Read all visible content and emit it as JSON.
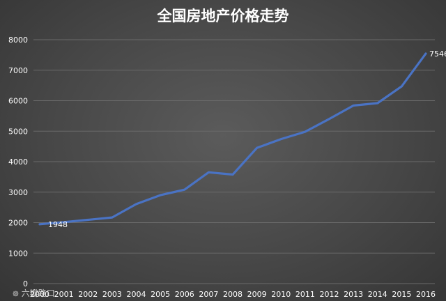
{
  "chart_data": {
    "type": "line",
    "title": "全国房地产价格走势",
    "xlabel": "",
    "ylabel": "",
    "x": [
      "2000",
      "2001",
      "2002",
      "2003",
      "2004",
      "2005",
      "2006",
      "2007",
      "2008",
      "2009",
      "2010",
      "2011",
      "2012",
      "2013",
      "2014",
      "2015",
      "2016"
    ],
    "series": [
      {
        "values": [
          1948,
          2017,
          2092,
          2170,
          2608,
          2900,
          3082,
          3650,
          3576,
          4450,
          4740,
          4980,
          5400,
          5840,
          5920,
          6470,
          7546
        ],
        "color": "#4a73c4"
      }
    ],
    "data_labels": [
      {
        "index": 0,
        "text": "1948"
      },
      {
        "index": 16,
        "text": "7546"
      }
    ],
    "ylim": [
      0,
      8000
    ],
    "yticks": [
      "0",
      "1000",
      "2000",
      "3000",
      "4000",
      "5000",
      "6000",
      "7000",
      "8000"
    ],
    "grid": true,
    "legend": "none",
    "background_color": "#474747",
    "gridline_color": "#6a6a6a"
  },
  "watermark": {
    "icon": "kuaijie-logo-icon",
    "text": "六瓣路口"
  }
}
